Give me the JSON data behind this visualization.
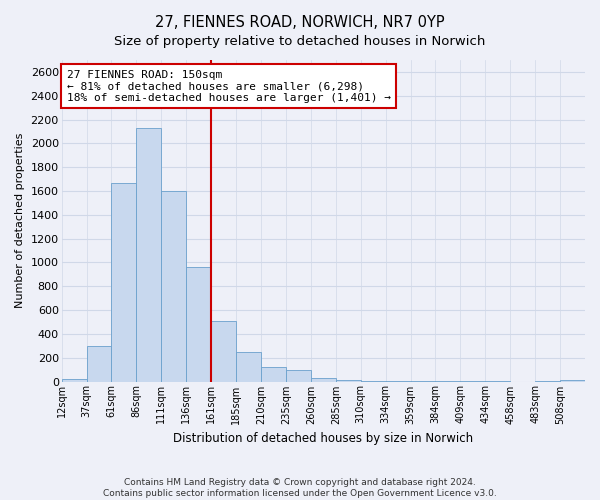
{
  "title_line1": "27, FIENNES ROAD, NORWICH, NR7 0YP",
  "title_line2": "Size of property relative to detached houses in Norwich",
  "xlabel": "Distribution of detached houses by size in Norwich",
  "ylabel": "Number of detached properties",
  "bin_labels": [
    "12sqm",
    "37sqm",
    "61sqm",
    "86sqm",
    "111sqm",
    "136sqm",
    "161sqm",
    "185sqm",
    "210sqm",
    "235sqm",
    "260sqm",
    "285sqm",
    "310sqm",
    "334sqm",
    "359sqm",
    "384sqm",
    "409sqm",
    "434sqm",
    "458sqm",
    "483sqm",
    "508sqm"
  ],
  "bar_heights": [
    20,
    295,
    1670,
    2130,
    1600,
    960,
    505,
    250,
    120,
    95,
    30,
    15,
    8,
    5,
    3,
    2,
    1,
    1,
    0,
    1,
    15
  ],
  "bar_color": "#c8d8ee",
  "bar_edge_color": "#6aa0cc",
  "ylim": [
    0,
    2700
  ],
  "yticks": [
    0,
    200,
    400,
    600,
    800,
    1000,
    1200,
    1400,
    1600,
    1800,
    2000,
    2200,
    2400,
    2600
  ],
  "marker_bin_index": 6,
  "marker_label": "27 FIENNES ROAD: 150sqm",
  "annotation_line1": "← 81% of detached houses are smaller (6,298)",
  "annotation_line2": "18% of semi-detached houses are larger (1,401) →",
  "marker_color": "#cc0000",
  "annotation_box_color": "#ffffff",
  "annotation_box_edge": "#cc0000",
  "footnote1": "Contains HM Land Registry data © Crown copyright and database right 2024.",
  "footnote2": "Contains public sector information licensed under the Open Government Licence v3.0.",
  "bg_color": "#eef0f8",
  "grid_color": "#d0d8e8",
  "title1_fontsize": 10.5,
  "title2_fontsize": 9.5
}
